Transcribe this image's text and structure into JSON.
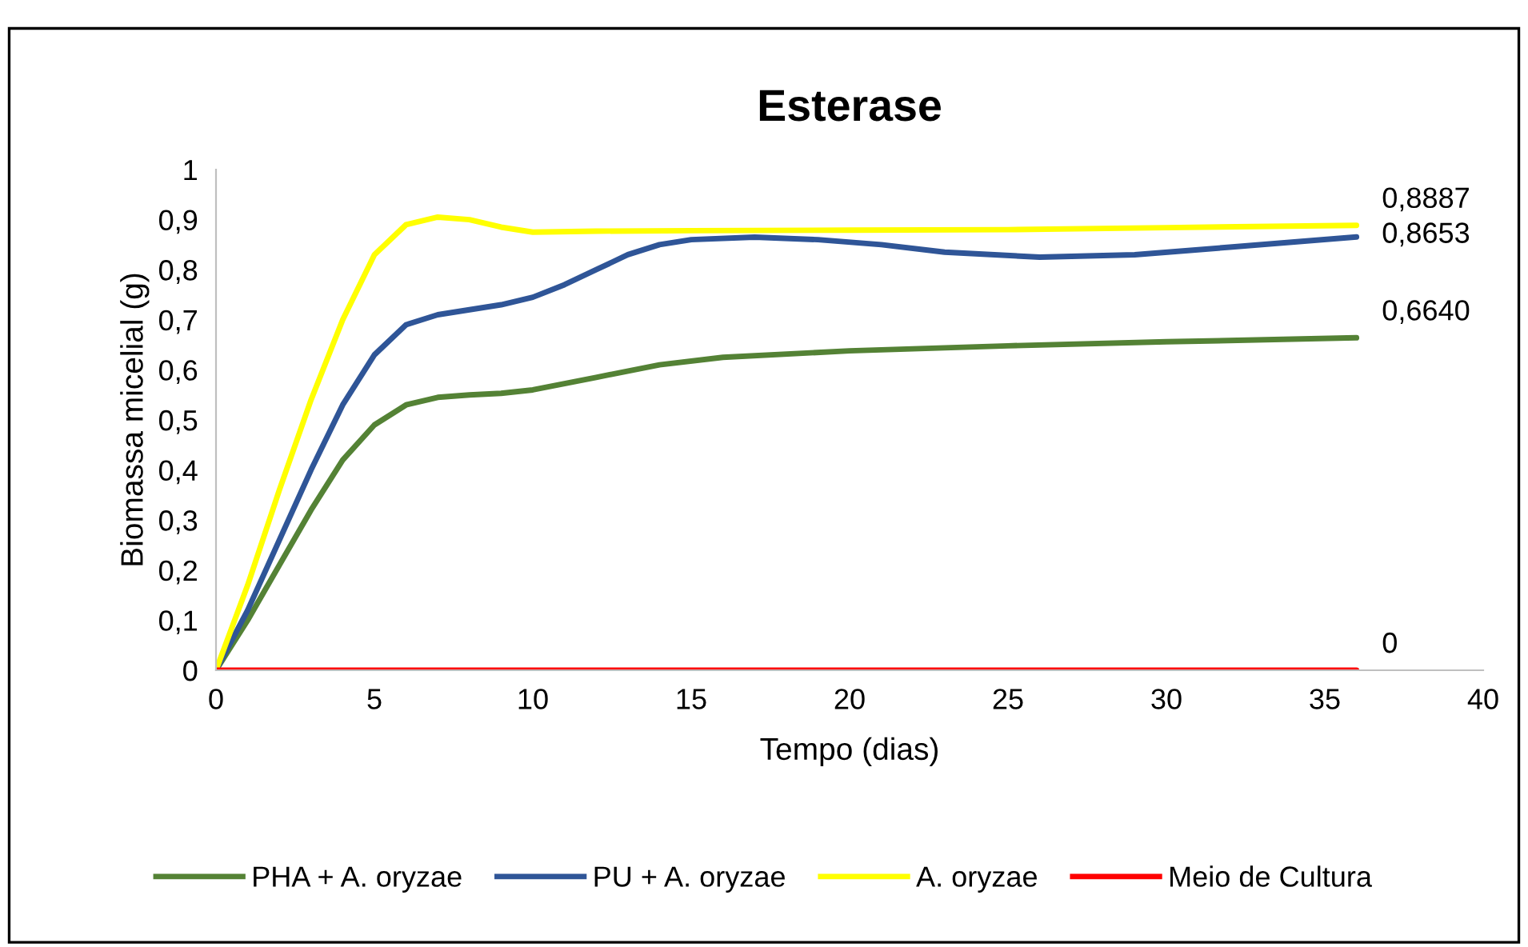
{
  "chart_data": {
    "type": "line",
    "title": "Esterase",
    "xlabel": "Tempo (dias)",
    "ylabel": "Biomassa micelial (g)",
    "x": [
      0,
      36
    ],
    "series": [
      {
        "name": "PHA + A. oryzae",
        "color": "#548235",
        "x": [
          0,
          1,
          2,
          3,
          4,
          5,
          6,
          7,
          8,
          9,
          10,
          12,
          14,
          16,
          20,
          25,
          30,
          36
        ],
        "values": [
          0,
          0.1,
          0.21,
          0.32,
          0.42,
          0.49,
          0.53,
          0.545,
          0.55,
          0.553,
          0.56,
          0.585,
          0.61,
          0.625,
          0.638,
          0.648,
          0.656,
          0.664
        ],
        "value_labels": [
          null,
          null,
          null,
          null,
          null,
          null,
          null,
          null,
          null,
          null,
          null,
          null,
          null,
          null,
          null,
          null,
          null,
          "0,6640"
        ]
      },
      {
        "name": "PU + A. oryzae",
        "color": "#2f5597",
        "x": [
          0,
          1,
          2,
          3,
          4,
          5,
          6,
          7,
          8,
          9,
          10,
          11,
          12,
          13,
          14,
          15,
          17,
          19,
          21,
          23,
          26,
          29,
          32,
          36
        ],
        "values": [
          0,
          0.12,
          0.26,
          0.4,
          0.53,
          0.63,
          0.69,
          0.71,
          0.72,
          0.73,
          0.745,
          0.77,
          0.8,
          0.83,
          0.85,
          0.86,
          0.865,
          0.86,
          0.85,
          0.835,
          0.825,
          0.83,
          0.845,
          0.8653
        ],
        "value_labels": [
          null,
          null,
          null,
          null,
          null,
          null,
          null,
          null,
          null,
          null,
          null,
          null,
          null,
          null,
          null,
          null,
          null,
          null,
          null,
          null,
          null,
          null,
          null,
          "0,8653"
        ]
      },
      {
        "name": "A. oryzae",
        "color": "#ffff00",
        "x": [
          0,
          1,
          2,
          3,
          4,
          5,
          6,
          7,
          8,
          9,
          10,
          12,
          15,
          20,
          25,
          30,
          36
        ],
        "values": [
          0,
          0.17,
          0.36,
          0.54,
          0.7,
          0.83,
          0.89,
          0.905,
          0.9,
          0.885,
          0.875,
          0.877,
          0.878,
          0.879,
          0.88,
          0.884,
          0.8887
        ],
        "value_labels": [
          null,
          null,
          null,
          null,
          null,
          null,
          null,
          null,
          null,
          null,
          null,
          null,
          null,
          null,
          null,
          null,
          "0,8887"
        ]
      },
      {
        "name": "Meio de Cultura",
        "color": "#ff0000",
        "values": [
          0,
          0
        ],
        "value_labels": [
          null,
          "0"
        ]
      }
    ],
    "xlim": [
      0,
      40
    ],
    "xticks": [
      0,
      5,
      10,
      15,
      20,
      25,
      30,
      35,
      40
    ],
    "ylim": [
      0,
      1
    ],
    "yticks": [
      0,
      {
        "value": 0.1,
        "label": "0,1"
      },
      {
        "value": 0.2,
        "label": "0,2"
      },
      {
        "value": 0.3,
        "label": "0,3"
      },
      {
        "value": 0.4,
        "label": "0,4"
      },
      {
        "value": 0.5,
        "label": "0,5"
      },
      {
        "value": 0.6,
        "label": "0,6"
      },
      {
        "value": 0.7,
        "label": "0,7"
      },
      {
        "value": 0.8,
        "label": "0,8"
      },
      {
        "value": 0.9,
        "label": "0,9"
      },
      1
    ],
    "grid": false,
    "legend": "bottom",
    "marker": "none",
    "line_style": "solid"
  }
}
